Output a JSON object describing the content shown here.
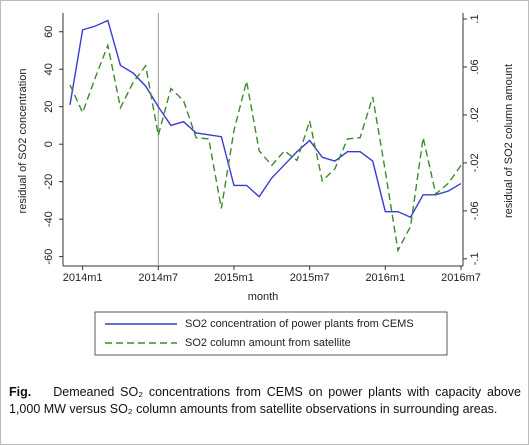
{
  "chart_data": {
    "type": "line",
    "x_label": "month",
    "y_label": "residual of SO2 concentration",
    "y2_label": "residual of SO2 column amount",
    "categories": [
      null,
      "2014m1",
      null,
      null,
      null,
      null,
      null,
      "2014m7",
      null,
      null,
      null,
      null,
      null,
      "2015m1",
      null,
      null,
      null,
      null,
      null,
      "2015m7",
      null,
      null,
      null,
      null,
      null,
      "2016m1",
      null,
      null,
      null,
      null,
      null,
      "2016m7"
    ],
    "reference_line_x": "2014m7",
    "series": [
      {
        "name": "SO2 concentration of power plants from CEMS",
        "color": "#3a3ad6",
        "dash": "solid",
        "values": [
          21,
          61,
          63,
          66,
          42,
          38,
          31,
          20,
          10,
          12,
          6,
          5,
          4,
          -22,
          -22,
          -28,
          -18,
          -11,
          -4,
          2,
          -7,
          -9,
          -4,
          -4,
          -9,
          -36,
          -36,
          -39,
          -27,
          -27,
          -25,
          -21
        ]
      },
      {
        "name": "SO2 column amount from satellite",
        "color": "#3d8a2e",
        "dash": "dashed",
        "axis": "y2",
        "values": [
          0.045,
          0.022,
          0.051,
          0.078,
          0.026,
          0.047,
          0.061,
          0.003,
          0.042,
          0.032,
          0.001,
          0.0,
          -0.058,
          0.007,
          0.048,
          -0.01,
          -0.022,
          -0.01,
          -0.018,
          0.015,
          -0.035,
          -0.025,
          0.0,
          0.001,
          0.035,
          -0.027,
          -0.093,
          -0.073,
          0.001,
          -0.046,
          -0.037,
          -0.022
        ]
      }
    ],
    "ylim": [
      -65,
      70
    ],
    "yticks": [
      -60,
      -40,
      -20,
      0,
      20,
      40,
      60
    ],
    "y2lim": [
      -0.106,
      0.105
    ],
    "y2ticks": [
      {
        "value": -0.1,
        "label": "-.1"
      },
      {
        "value": -0.06,
        "label": "-.06"
      },
      {
        "value": -0.02,
        "label": "-.02"
      },
      {
        "value": 0.02,
        "label": ".02"
      },
      {
        "value": 0.06,
        "label": ".06"
      },
      {
        "value": 0.1,
        "label": ".1"
      }
    ],
    "grid": false
  },
  "caption": {
    "label": "Fig.",
    "text": "Demeaned SO₂ concentrations from CEMS on power plants with capacity above 1,000 MW versus SO₂ column amounts from satellite observations in surrounding areas."
  }
}
